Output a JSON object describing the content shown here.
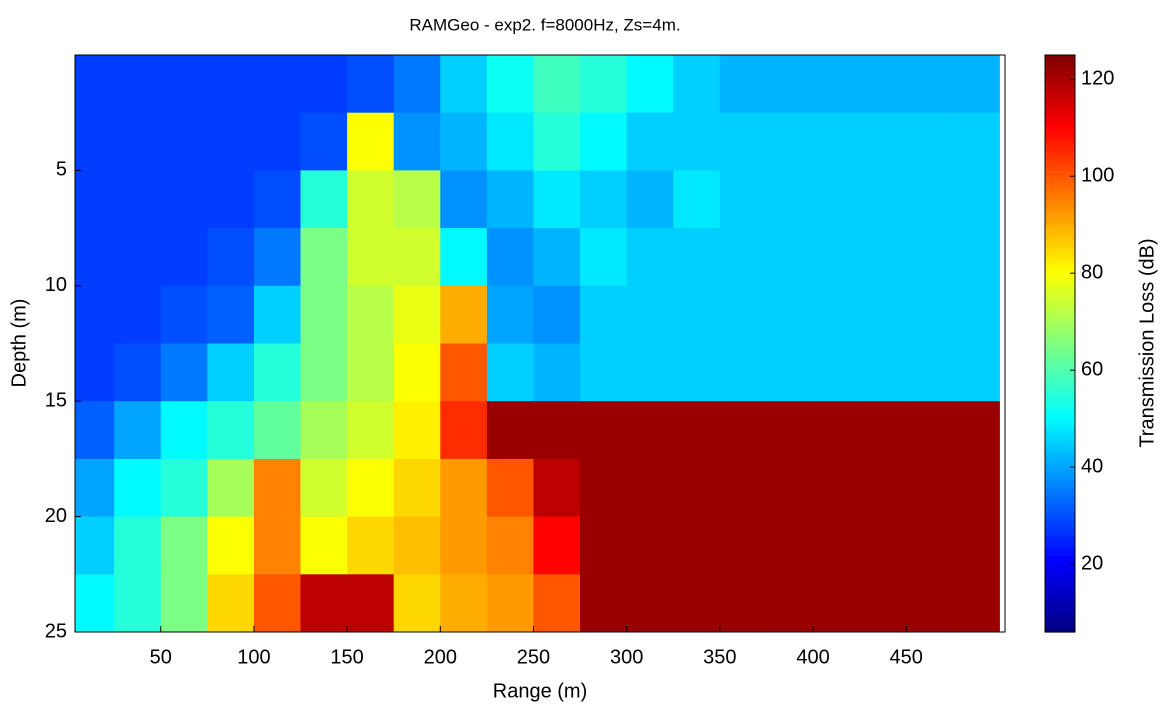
{
  "chart_data": {
    "type": "heatmap",
    "title": "RAMGeo - exp2. f=8000Hz, Zs=4m.",
    "x_label": "Range (m)",
    "y_label": "Depth (m)",
    "colorbar_label": "Transmission Loss (dB)",
    "colormap": "jet",
    "xlim": [
      4,
      503
    ],
    "ylim": [
      25,
      0
    ],
    "clim": [
      6,
      125
    ],
    "xticks": [
      50,
      100,
      150,
      200,
      250,
      300,
      350,
      400,
      450
    ],
    "yticks": [
      5,
      10,
      15,
      20,
      25
    ],
    "cticks": [
      20,
      40,
      60,
      80,
      100,
      120
    ],
    "x": [
      12.5,
      37.5,
      62.5,
      87.5,
      112.5,
      137.5,
      162.5,
      187.5,
      212.5,
      237.5,
      262.5,
      287.5,
      312.5,
      337.5,
      362.5,
      387.5,
      412.5,
      437.5,
      462.5,
      487.5
    ],
    "y": [
      1.25,
      3.75,
      6.25,
      8.75,
      11.25,
      13.75,
      16.25,
      18.75,
      21.25,
      23.75
    ],
    "z": [
      [
        28,
        28,
        28,
        28,
        28,
        28,
        30,
        35,
        45,
        52,
        58,
        55,
        50,
        45,
        42,
        42,
        42,
        42,
        42,
        42
      ],
      [
        28,
        28,
        28,
        28,
        28,
        30,
        80,
        38,
        42,
        48,
        55,
        50,
        45,
        45,
        45,
        45,
        45,
        45,
        45,
        45
      ],
      [
        28,
        28,
        28,
        28,
        30,
        55,
        75,
        72,
        38,
        42,
        48,
        45,
        42,
        48,
        45,
        45,
        45,
        45,
        45,
        45
      ],
      [
        28,
        28,
        28,
        30,
        35,
        65,
        75,
        75,
        50,
        38,
        42,
        48,
        45,
        45,
        45,
        45,
        45,
        45,
        45,
        45
      ],
      [
        28,
        28,
        30,
        32,
        45,
        65,
        72,
        78,
        90,
        40,
        38,
        45,
        45,
        45,
        45,
        45,
        45,
        45,
        45,
        45
      ],
      [
        28,
        30,
        35,
        45,
        55,
        65,
        72,
        80,
        100,
        45,
        42,
        45,
        45,
        45,
        45,
        45,
        45,
        45,
        45,
        45
      ],
      [
        32,
        40,
        50,
        55,
        62,
        70,
        75,
        82,
        105,
        122,
        122,
        122,
        122,
        122,
        122,
        122,
        122,
        122,
        122,
        122
      ],
      [
        40,
        50,
        55,
        70,
        95,
        75,
        80,
        85,
        92,
        100,
        118,
        122,
        122,
        122,
        122,
        122,
        122,
        122,
        122,
        122
      ],
      [
        45,
        55,
        65,
        80,
        95,
        80,
        85,
        88,
        92,
        95,
        110,
        122,
        122,
        122,
        122,
        122,
        122,
        122,
        122,
        122
      ],
      [
        50,
        55,
        65,
        85,
        100,
        118,
        118,
        85,
        90,
        92,
        100,
        122,
        122,
        122,
        122,
        122,
        122,
        122,
        122,
        122
      ]
    ]
  }
}
